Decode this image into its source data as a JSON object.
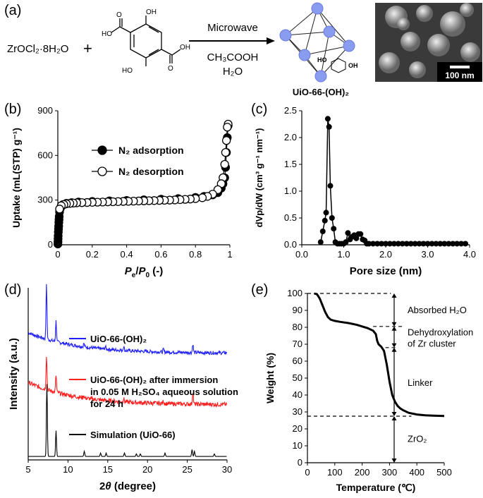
{
  "panels": {
    "a": "(a)",
    "b": "(b)",
    "c": "(c)",
    "d": "(d)",
    "e": "(e)"
  },
  "scheme": {
    "reactant1": "ZrOCl₂·8H₂O",
    "plus": "+",
    "ligand_oh_top": "OH",
    "ligand_oh_bottom": "HO",
    "ligand_ho_left": "HO",
    "ligand_o_label": "O",
    "arrow_top": "Microwave",
    "arrow_bottom1": "CH₃COOH",
    "arrow_bottom2": "H₂O",
    "product_name": "UiO-66-(OH)₂",
    "mof_ho": "HO",
    "mof_oh": "OH",
    "scale_bar": "100 nm"
  },
  "chart_data": [
    {
      "id": "b",
      "type": "line",
      "xlabel": "Pe/P0 (-)",
      "xlabel_parts": {
        "p": "P",
        "e": "e",
        "slash": "/",
        "p2": "P",
        "zero": "0",
        "unit": " (-)"
      },
      "ylabel": "Uptake (mL(STP) g⁻¹)",
      "xlim": [
        0,
        1
      ],
      "ylim": [
        0,
        900
      ],
      "xticks": [
        "0",
        "0.2",
        "0.4",
        "0.6",
        "0.8",
        "1"
      ],
      "yticks": [
        "0",
        "300",
        "600",
        "900"
      ],
      "legend": [
        "N₂ adsorption",
        "N₂ desorption"
      ],
      "legend_placement": "center",
      "series": [
        {
          "name": "N₂ adsorption",
          "marker": "filled",
          "x": [
            0.0005,
            0.001,
            0.0015,
            0.002,
            0.003,
            0.004,
            0.005,
            0.006,
            0.007,
            0.008,
            0.01,
            0.015,
            0.02,
            0.03,
            0.05,
            0.08,
            0.12,
            0.2,
            0.3,
            0.4,
            0.5,
            0.6,
            0.7,
            0.8,
            0.85,
            0.9,
            0.93,
            0.95,
            0.96,
            0.97,
            0.975,
            0.98,
            0.985,
            0.99
          ],
          "y": [
            5,
            20,
            40,
            60,
            85,
            105,
            125,
            150,
            170,
            190,
            220,
            245,
            260,
            270,
            278,
            283,
            287,
            291,
            295,
            298,
            302,
            306,
            310,
            318,
            325,
            335,
            350,
            380,
            410,
            450,
            520,
            620,
            720,
            800
          ]
        },
        {
          "name": "N₂ desorption",
          "marker": "open",
          "x": [
            0.99,
            0.985,
            0.98,
            0.975,
            0.97,
            0.96,
            0.95,
            0.93,
            0.9,
            0.87,
            0.84,
            0.8,
            0.77,
            0.74,
            0.71,
            0.68,
            0.65,
            0.62,
            0.59,
            0.56,
            0.53,
            0.5,
            0.47,
            0.44,
            0.41,
            0.38,
            0.35,
            0.32,
            0.29,
            0.26,
            0.23,
            0.2,
            0.17,
            0.14,
            0.11,
            0.09,
            0.07,
            0.05,
            0.035,
            0.02,
            0.01
          ],
          "y": [
            810,
            790,
            700,
            620,
            540,
            450,
            410,
            370,
            340,
            325,
            316,
            310,
            307,
            305,
            303,
            301,
            300,
            299,
            298,
            297,
            296,
            295,
            294,
            293,
            292,
            291,
            290,
            289,
            288,
            287,
            286,
            285,
            284,
            283,
            282,
            280,
            278,
            275,
            270,
            262,
            240
          ]
        }
      ]
    },
    {
      "id": "c",
      "type": "line",
      "xlabel": "Pore size (nm)",
      "ylabel": "dVp/dW (cm³ g⁻¹ nm⁻¹)",
      "xlim": [
        0,
        4
      ],
      "ylim": [
        0,
        2.5
      ],
      "xticks": [
        "0.0",
        "1.0",
        "2.0",
        "3.0",
        "4.0"
      ],
      "yticks": [
        "0.0",
        "0.5",
        "1.0",
        "1.5",
        "2.0",
        "2.5"
      ],
      "series": [
        {
          "name": "",
          "marker": "filled",
          "x": [
            0.45,
            0.5,
            0.55,
            0.58,
            0.62,
            0.65,
            0.68,
            0.72,
            0.76,
            0.8,
            0.85,
            0.9,
            0.95,
            1.0,
            1.05,
            1.1,
            1.15,
            1.2,
            1.25,
            1.3,
            1.35,
            1.4,
            1.45,
            1.5,
            1.55,
            1.6,
            1.7,
            1.8,
            1.9,
            2.0,
            2.1,
            2.2,
            2.3,
            2.4,
            2.5,
            2.6,
            2.7,
            2.8,
            2.9,
            3.0,
            3.1,
            3.2,
            3.3,
            3.4,
            3.5,
            3.6,
            3.7,
            3.8,
            3.9
          ],
          "y": [
            0.05,
            0.25,
            0.45,
            0.6,
            2.35,
            2.2,
            1.1,
            0.5,
            0.3,
            0.05,
            0.02,
            0.02,
            0.02,
            0.02,
            0.05,
            0.22,
            0.1,
            0.15,
            0.18,
            0.12,
            0.2,
            0.2,
            0.1,
            0.08,
            0.02,
            0.02,
            0.02,
            0.02,
            0.02,
            0.02,
            0.02,
            0.02,
            0.02,
            0.02,
            0.02,
            0.02,
            0.02,
            0.02,
            0.02,
            0.02,
            0.02,
            0.02,
            0.02,
            0.02,
            0.02,
            0.02,
            0.02,
            0.02,
            0.02
          ]
        }
      ]
    },
    {
      "id": "d",
      "type": "line",
      "xlabel": "2θ (degree)",
      "xlabel_parts": {
        "two": "2",
        "theta": "θ",
        "unit": " (degree)"
      },
      "ylabel": "Intensity (a.u.)",
      "xlim": [
        5,
        30
      ],
      "xticks": [
        "5",
        "10",
        "15",
        "20",
        "25",
        "30"
      ],
      "legend": [
        {
          "text": "UiO-66-(OH)₂",
          "color": "#2020ff"
        },
        {
          "text": "UiO-66-(OH)₂ after immersion",
          "line2": "in 0.05 M H₂SO₄ aqueous solution",
          "line3": "for 24 h",
          "color": "#ff2020"
        },
        {
          "text": "Simulation (UiO-66)",
          "color": "#000000"
        }
      ],
      "series": [
        {
          "name": "UiO-66-(OH)₂",
          "color": "#2020ff",
          "offset": 0.62,
          "noise": 0.02,
          "baseline_start": 0.12,
          "peaks": [
            [
              7.3,
              0.32
            ],
            [
              8.5,
              0.12
            ],
            [
              12.0,
              0.02
            ],
            [
              14.7,
              0.015
            ],
            [
              17.0,
              0.025
            ],
            [
              22.0,
              0.015
            ],
            [
              25.7,
              0.05
            ]
          ]
        },
        {
          "name": "UiO-66-(OH)₂ after immersion in 0.05 M H₂SO₄ aqueous solution for 24 h",
          "color": "#ff2020",
          "offset": 0.32,
          "noise": 0.025,
          "baseline_start": 0.13,
          "peaks": [
            [
              7.3,
              0.2
            ],
            [
              8.5,
              0.1
            ],
            [
              12.0,
              0.015
            ],
            [
              17.0,
              0.02
            ],
            [
              22.0,
              0.015
            ],
            [
              25.7,
              0.07
            ]
          ]
        },
        {
          "name": "Simulation (UiO-66)",
          "color": "#000000",
          "offset": 0.02,
          "noise": 0.0,
          "baseline_start": 0.0,
          "peaks": [
            [
              7.35,
              0.42
            ],
            [
              8.5,
              0.15
            ],
            [
              12.05,
              0.03
            ],
            [
              14.1,
              0.02
            ],
            [
              14.8,
              0.02
            ],
            [
              17.1,
              0.02
            ],
            [
              18.6,
              0.015
            ],
            [
              19.1,
              0.015
            ],
            [
              22.2,
              0.02
            ],
            [
              25.6,
              0.04
            ],
            [
              25.9,
              0.03
            ],
            [
              28.4,
              0.015
            ]
          ]
        }
      ]
    },
    {
      "id": "e",
      "type": "line",
      "xlabel": "Temperature (℃)",
      "ylabel": "Weight (%)",
      "xlim": [
        0,
        500
      ],
      "ylim": [
        0,
        100
      ],
      "xticks": [
        "0",
        "100",
        "200",
        "300",
        "400",
        "500"
      ],
      "yticks": [
        "0",
        "10",
        "20",
        "30",
        "40",
        "50",
        "60",
        "70",
        "80",
        "90",
        "100"
      ],
      "series": [
        {
          "name": "",
          "color": "#000000",
          "x": [
            25,
            35,
            45,
            55,
            65,
            75,
            85,
            100,
            120,
            150,
            180,
            200,
            220,
            240,
            250,
            255,
            260,
            270,
            280,
            290,
            300,
            310,
            320,
            330,
            340,
            350,
            370,
            400,
            430,
            460,
            500
          ],
          "y": [
            100,
            99.5,
            97,
            93,
            89,
            86,
            84.5,
            83.8,
            83.2,
            82.5,
            81.5,
            80.5,
            79.5,
            78,
            76,
            72,
            70,
            68.5,
            66,
            58,
            48,
            40,
            36,
            33.5,
            32,
            31,
            29.5,
            28.5,
            28,
            27.8,
            27.6
          ]
        }
      ],
      "annotations": {
        "dash_levels": [
          100,
          80.5,
          68,
          27.5
        ],
        "labels": [
          "Absorbed H₂O",
          "Dehydroxylation",
          "of Zr cluster",
          "Linker",
          "ZrO₂"
        ]
      }
    }
  ]
}
